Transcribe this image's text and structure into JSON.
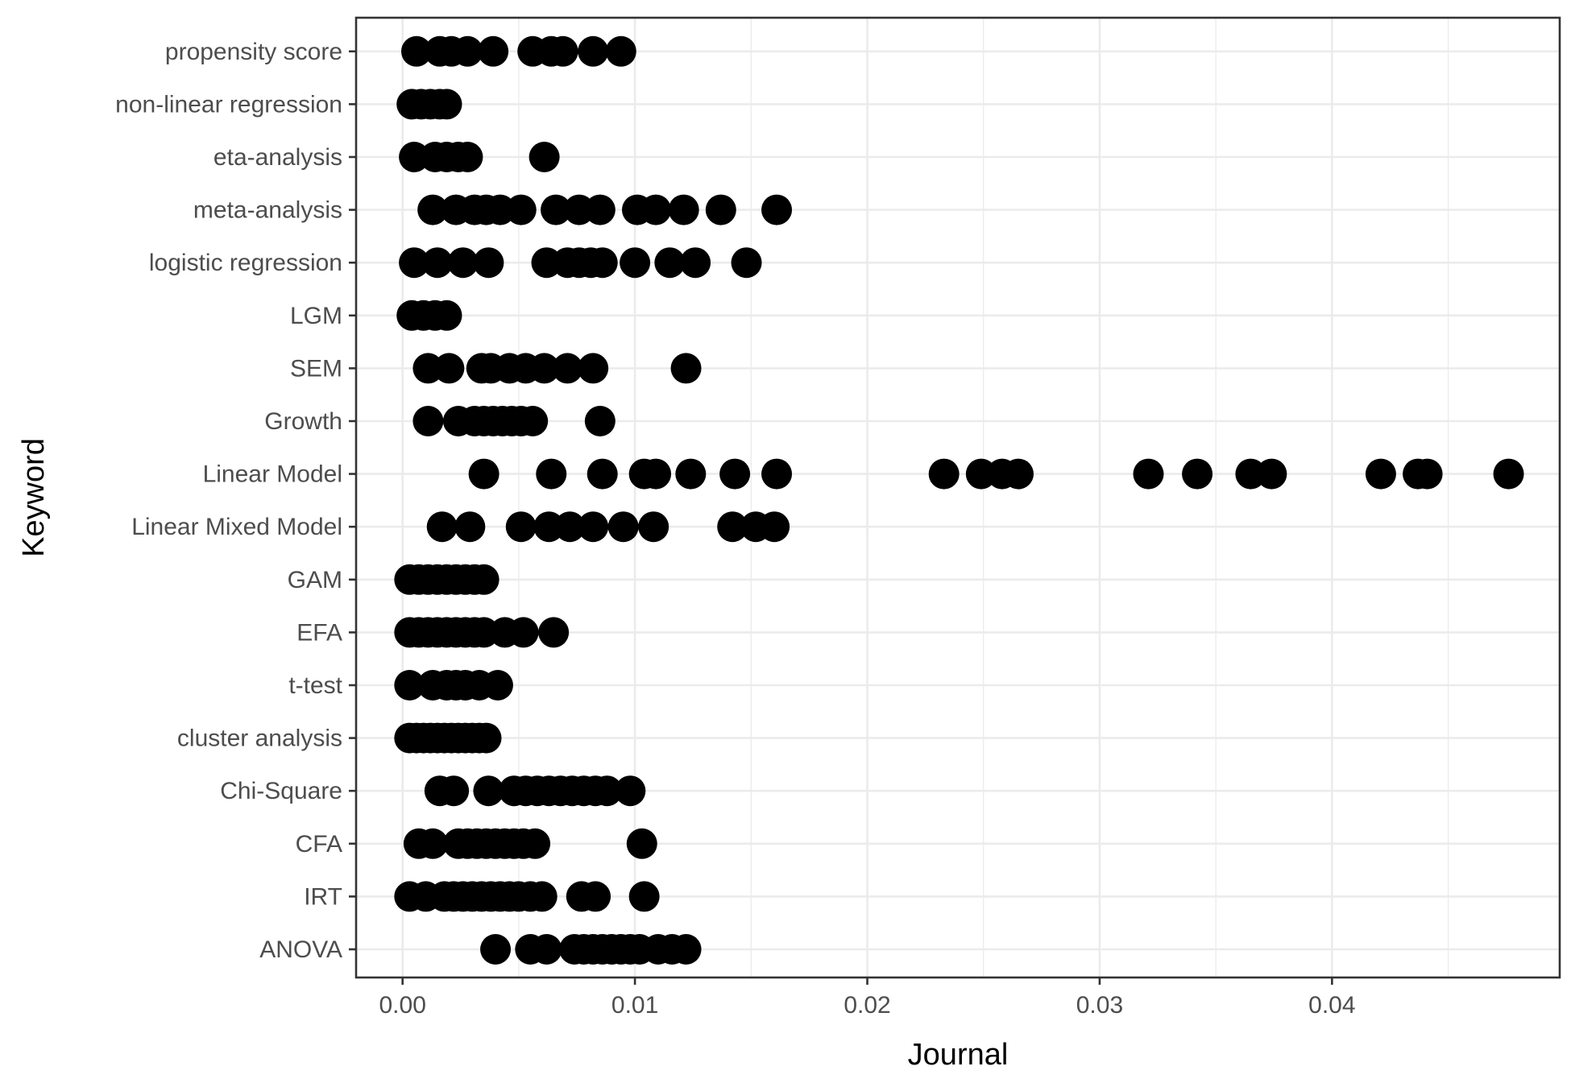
{
  "chart_data": {
    "type": "scatter",
    "xlabel": "Journal",
    "ylabel": "Keyword",
    "xlim": [
      -0.002,
      0.0498
    ],
    "x_ticks": [
      0.0,
      0.01,
      0.02,
      0.03,
      0.04
    ],
    "x_tick_labels": [
      "0.00",
      "0.01",
      "0.02",
      "0.03",
      "0.04"
    ],
    "grid": true,
    "marker_color": "#000000",
    "categories": [
      "ANOVA",
      "IRT",
      "CFA",
      "Chi-Square",
      "cluster analysis",
      "t-test",
      "EFA",
      "GAM",
      "Linear Mixed Model",
      "Linear Model",
      "Growth",
      "SEM",
      "LGM",
      "logistic regression",
      "meta-analysis",
      "eta-analysis",
      "non-linear regression",
      "propensity score"
    ],
    "series": [
      {
        "category": "ANOVA",
        "x": [
          0.004,
          0.0055,
          0.0062,
          0.0074,
          0.0078,
          0.0082,
          0.0086,
          0.009,
          0.0094,
          0.0098,
          0.0102,
          0.011,
          0.0116,
          0.0122
        ]
      },
      {
        "category": "IRT",
        "x": [
          0.0003,
          0.001,
          0.0018,
          0.0022,
          0.0026,
          0.003,
          0.0034,
          0.0038,
          0.0042,
          0.0046,
          0.005,
          0.0055,
          0.006,
          0.0077,
          0.0083,
          0.0104
        ]
      },
      {
        "category": "CFA",
        "x": [
          0.0007,
          0.0013,
          0.0024,
          0.0028,
          0.0032,
          0.0036,
          0.004,
          0.0044,
          0.0048,
          0.0052,
          0.0057,
          0.0103
        ]
      },
      {
        "category": "Chi-Square",
        "x": [
          0.0016,
          0.0022,
          0.0037,
          0.0048,
          0.0053,
          0.0058,
          0.0063,
          0.0068,
          0.0073,
          0.0078,
          0.0083,
          0.0088,
          0.0098
        ]
      },
      {
        "category": "cluster analysis",
        "x": [
          0.0003,
          0.0006,
          0.0009,
          0.0012,
          0.0015,
          0.0018,
          0.0021,
          0.0024,
          0.0027,
          0.003,
          0.0033,
          0.0036
        ]
      },
      {
        "category": "t-test",
        "x": [
          0.0003,
          0.0013,
          0.0019,
          0.0023,
          0.0027,
          0.0033,
          0.0041
        ]
      },
      {
        "category": "EFA",
        "x": [
          0.0003,
          0.0007,
          0.0011,
          0.0015,
          0.0019,
          0.0023,
          0.0027,
          0.0031,
          0.0035,
          0.0044,
          0.0052,
          0.0065
        ]
      },
      {
        "category": "GAM",
        "x": [
          0.0003,
          0.0007,
          0.0011,
          0.0015,
          0.0019,
          0.0023,
          0.0027,
          0.0031,
          0.0035
        ]
      },
      {
        "category": "Linear Mixed Model",
        "x": [
          0.0017,
          0.0029,
          0.0051,
          0.0063,
          0.0072,
          0.0082,
          0.0095,
          0.0108,
          0.0142,
          0.0152,
          0.016
        ]
      },
      {
        "category": "Linear Model",
        "x": [
          0.0035,
          0.0064,
          0.0086,
          0.0104,
          0.0109,
          0.0124,
          0.0143,
          0.0161,
          0.0233,
          0.0249,
          0.0258,
          0.0265,
          0.0321,
          0.0342,
          0.0365,
          0.0374,
          0.0421,
          0.0437,
          0.0441,
          0.0476
        ]
      },
      {
        "category": "Growth",
        "x": [
          0.0011,
          0.0024,
          0.0031,
          0.0035,
          0.0039,
          0.0043,
          0.0047,
          0.0051,
          0.0056,
          0.0085
        ]
      },
      {
        "category": "SEM",
        "x": [
          0.0011,
          0.002,
          0.0034,
          0.0038,
          0.0046,
          0.0053,
          0.0061,
          0.0071,
          0.0082,
          0.0122
        ]
      },
      {
        "category": "LGM",
        "x": [
          0.0004,
          0.0009,
          0.0014,
          0.0019
        ]
      },
      {
        "category": "logistic regression",
        "x": [
          0.0005,
          0.0015,
          0.0026,
          0.0037,
          0.0062,
          0.0071,
          0.0076,
          0.0081,
          0.0086,
          0.01,
          0.0115,
          0.0126,
          0.0148
        ]
      },
      {
        "category": "meta-analysis",
        "x": [
          0.0013,
          0.0023,
          0.0031,
          0.0036,
          0.0042,
          0.0051,
          0.0066,
          0.0076,
          0.0085,
          0.0101,
          0.0109,
          0.0121,
          0.0137,
          0.0161
        ]
      },
      {
        "category": "eta-analysis",
        "x": [
          0.0005,
          0.0014,
          0.0019,
          0.0024,
          0.0028,
          0.0061
        ]
      },
      {
        "category": "non-linear regression",
        "x": [
          0.0004,
          0.0008,
          0.0012,
          0.0016,
          0.0019
        ]
      },
      {
        "category": "propensity score",
        "x": [
          0.0006,
          0.0016,
          0.0021,
          0.0028,
          0.0039,
          0.0056,
          0.0064,
          0.0069,
          0.0082,
          0.0094
        ]
      }
    ]
  }
}
